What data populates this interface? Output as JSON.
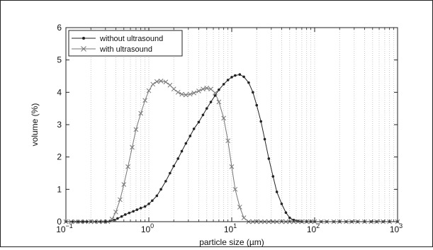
{
  "chart_data": {
    "type": "line",
    "xscale": "log",
    "xlim": [
      0.1,
      1000
    ],
    "ylim": [
      0,
      6
    ],
    "xlabel": "particle size (µm)",
    "ylabel": "volume (%)",
    "grid": "vertical-minor-dotted",
    "legend_position": "top-left",
    "x_ticks": [
      {
        "base": "10",
        "exp": "−1",
        "value": 0.1
      },
      {
        "base": "10",
        "exp": "0",
        "value": 1
      },
      {
        "base": "10",
        "exp": "1",
        "value": 10
      },
      {
        "base": "10",
        "exp": "2",
        "value": 100
      },
      {
        "base": "10",
        "exp": "3",
        "value": 1000
      }
    ],
    "y_ticks": [
      "0",
      "1",
      "2",
      "3",
      "4",
      "5",
      "6"
    ],
    "series": [
      {
        "name": "without ultrasound",
        "color": "#222222",
        "marker": "dot",
        "points": [
          [
            0.1,
            0
          ],
          [
            0.12,
            0
          ],
          [
            0.14,
            0
          ],
          [
            0.16,
            0
          ],
          [
            0.18,
            0
          ],
          [
            0.2,
            0
          ],
          [
            0.23,
            0
          ],
          [
            0.26,
            0
          ],
          [
            0.3,
            0
          ],
          [
            0.34,
            0.02
          ],
          [
            0.38,
            0.05
          ],
          [
            0.42,
            0.1
          ],
          [
            0.47,
            0.16
          ],
          [
            0.52,
            0.22
          ],
          [
            0.58,
            0.27
          ],
          [
            0.65,
            0.32
          ],
          [
            0.72,
            0.37
          ],
          [
            0.8,
            0.42
          ],
          [
            0.9,
            0.47
          ],
          [
            1.0,
            0.55
          ],
          [
            1.1,
            0.65
          ],
          [
            1.25,
            0.8
          ],
          [
            1.4,
            1.0
          ],
          [
            1.6,
            1.25
          ],
          [
            1.8,
            1.5
          ],
          [
            2.0,
            1.72
          ],
          [
            2.25,
            1.95
          ],
          [
            2.5,
            2.18
          ],
          [
            2.8,
            2.42
          ],
          [
            3.15,
            2.65
          ],
          [
            3.5,
            2.87
          ],
          [
            4.0,
            3.08
          ],
          [
            4.5,
            3.3
          ],
          [
            5.0,
            3.5
          ],
          [
            5.6,
            3.7
          ],
          [
            6.3,
            3.9
          ],
          [
            7.0,
            4.08
          ],
          [
            8.0,
            4.25
          ],
          [
            9.0,
            4.38
          ],
          [
            10.0,
            4.47
          ],
          [
            11.0,
            4.52
          ],
          [
            12.5,
            4.55
          ],
          [
            14.0,
            4.48
          ],
          [
            16.0,
            4.3
          ],
          [
            18.0,
            4.0
          ],
          [
            20.0,
            3.6
          ],
          [
            22.5,
            3.1
          ],
          [
            25.0,
            2.55
          ],
          [
            28.0,
            1.95
          ],
          [
            31.5,
            1.4
          ],
          [
            35.0,
            0.92
          ],
          [
            40.0,
            0.55
          ],
          [
            45.0,
            0.28
          ],
          [
            50.0,
            0.12
          ],
          [
            56.0,
            0.05
          ],
          [
            63.0,
            0.02
          ],
          [
            70.0,
            0
          ],
          [
            80.0,
            0
          ],
          [
            90.0,
            0
          ],
          [
            100.0,
            0
          ],
          [
            120.0,
            0
          ],
          [
            140.0,
            0
          ],
          [
            170.0,
            0
          ],
          [
            200.0,
            0
          ],
          [
            240.0,
            0
          ],
          [
            280.0,
            0
          ],
          [
            330.0,
            0
          ],
          [
            400.0,
            0
          ],
          [
            480.0,
            0
          ],
          [
            560.0,
            0
          ],
          [
            670.0,
            0
          ],
          [
            800.0,
            0
          ],
          [
            1000.0,
            0
          ]
        ]
      },
      {
        "name": "with ultrasound",
        "color": "#777777",
        "marker": "x",
        "points": [
          [
            0.1,
            0
          ],
          [
            0.115,
            0
          ],
          [
            0.13,
            0
          ],
          [
            0.15,
            0
          ],
          [
            0.17,
            0
          ],
          [
            0.2,
            0
          ],
          [
            0.22,
            0
          ],
          [
            0.25,
            0
          ],
          [
            0.28,
            0
          ],
          [
            0.32,
            0
          ],
          [
            0.36,
            0.08
          ],
          [
            0.4,
            0.3
          ],
          [
            0.45,
            0.68
          ],
          [
            0.5,
            1.15
          ],
          [
            0.56,
            1.7
          ],
          [
            0.63,
            2.3
          ],
          [
            0.7,
            2.85
          ],
          [
            0.8,
            3.35
          ],
          [
            0.9,
            3.75
          ],
          [
            1.0,
            4.05
          ],
          [
            1.12,
            4.25
          ],
          [
            1.25,
            4.33
          ],
          [
            1.4,
            4.35
          ],
          [
            1.6,
            4.32
          ],
          [
            1.8,
            4.22
          ],
          [
            2.0,
            4.1
          ],
          [
            2.25,
            4.0
          ],
          [
            2.5,
            3.94
          ],
          [
            2.8,
            3.92
          ],
          [
            3.15,
            3.94
          ],
          [
            3.5,
            3.98
          ],
          [
            4.0,
            4.04
          ],
          [
            4.5,
            4.1
          ],
          [
            5.0,
            4.13
          ],
          [
            5.6,
            4.1
          ],
          [
            6.3,
            3.98
          ],
          [
            7.0,
            3.7
          ],
          [
            8.0,
            3.2
          ],
          [
            9.0,
            2.5
          ],
          [
            10.0,
            1.7
          ],
          [
            11.0,
            1.0
          ],
          [
            12.5,
            0.45
          ],
          [
            14.0,
            0.12
          ],
          [
            16.0,
            0
          ],
          [
            18.0,
            0
          ],
          [
            20.0,
            0
          ],
          [
            22.5,
            0
          ],
          [
            25.0,
            0
          ],
          [
            28.0,
            0
          ],
          [
            31.5,
            0
          ],
          [
            35.0,
            0
          ],
          [
            40.0,
            0
          ],
          [
            45.0,
            0
          ],
          [
            50.0,
            0
          ],
          [
            56.0,
            0
          ],
          [
            63.0,
            0
          ],
          [
            70.0,
            0
          ],
          [
            80.0,
            0
          ],
          [
            90.0,
            0
          ],
          [
            100.0,
            0
          ],
          [
            120.0,
            0
          ],
          [
            140.0,
            0
          ],
          [
            170.0,
            0
          ],
          [
            200.0,
            0
          ],
          [
            240.0,
            0
          ],
          [
            280.0,
            0
          ],
          [
            330.0,
            0
          ],
          [
            400.0,
            0
          ],
          [
            480.0,
            0
          ],
          [
            560.0,
            0
          ],
          [
            670.0,
            0
          ],
          [
            800.0,
            0
          ],
          [
            1000.0,
            0
          ]
        ]
      }
    ]
  }
}
